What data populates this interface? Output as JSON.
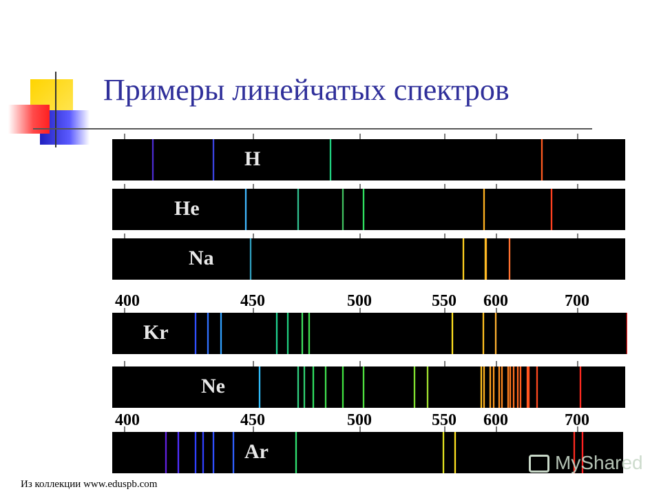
{
  "title": "Примеры линейчатых спектров",
  "footer": "Из коллекции www.eduspb.com",
  "watermark": "MyShared",
  "axis_labels": [
    "400",
    "450",
    "500",
    "550",
    "600",
    "700"
  ],
  "spectra": [
    {
      "element": "H",
      "lines": [
        {
          "nm": 410,
          "color": "#4b2bd0"
        },
        {
          "nm": 434,
          "color": "#3b44e0"
        },
        {
          "nm": 486,
          "color": "#20d080"
        },
        {
          "nm": 656,
          "color": "#ff5a20"
        }
      ]
    },
    {
      "element": "He",
      "lines": [
        {
          "nm": 447,
          "color": "#40b8ff"
        },
        {
          "nm": 471,
          "color": "#30c090"
        },
        {
          "nm": 492,
          "color": "#40c060"
        },
        {
          "nm": 502,
          "color": "#30e060"
        },
        {
          "nm": 588,
          "color": "#ffb020"
        },
        {
          "nm": 668,
          "color": "#ff4020"
        }
      ]
    },
    {
      "element": "Na",
      "lines": [
        {
          "nm": 449,
          "color": "#30a0c0"
        },
        {
          "nm": 568,
          "color": "#ffd020"
        },
        {
          "nm": 589,
          "color": "#ffd030"
        },
        {
          "nm": 590,
          "color": "#ffb020"
        },
        {
          "nm": 616,
          "color": "#ff7030"
        }
      ]
    },
    {
      "element": "Kr",
      "lines": [
        {
          "nm": 427,
          "color": "#3050ff"
        },
        {
          "nm": 432,
          "color": "#3070ff"
        },
        {
          "nm": 437,
          "color": "#30a0ff"
        },
        {
          "nm": 461,
          "color": "#20d090"
        },
        {
          "nm": 466,
          "color": "#20d080"
        },
        {
          "nm": 473,
          "color": "#40e060"
        },
        {
          "nm": 476,
          "color": "#40e050"
        },
        {
          "nm": 557,
          "color": "#ffe020"
        },
        {
          "nm": 587,
          "color": "#ffc020"
        },
        {
          "nm": 599,
          "color": "#ffb030"
        },
        {
          "nm": 760,
          "color": "#ff2020"
        }
      ]
    },
    {
      "element": "Ne",
      "lines": [
        {
          "nm": 453,
          "color": "#30c0ff"
        },
        {
          "nm": 471,
          "color": "#30d080"
        },
        {
          "nm": 474,
          "color": "#30d070"
        },
        {
          "nm": 478,
          "color": "#30e060"
        },
        {
          "nm": 484,
          "color": "#40e050"
        },
        {
          "nm": 492,
          "color": "#40e040"
        },
        {
          "nm": 502,
          "color": "#50e040"
        },
        {
          "nm": 532,
          "color": "#80e030"
        },
        {
          "nm": 540,
          "color": "#a0e030"
        },
        {
          "nm": 585,
          "color": "#ffc020"
        },
        {
          "nm": 588,
          "color": "#ffb020"
        },
        {
          "nm": 594,
          "color": "#ffa020"
        },
        {
          "nm": 597,
          "color": "#ff9a20"
        },
        {
          "nm": 603,
          "color": "#ff9020"
        },
        {
          "nm": 607,
          "color": "#ff8820"
        },
        {
          "nm": 614,
          "color": "#ff8020"
        },
        {
          "nm": 617,
          "color": "#ff7820"
        },
        {
          "nm": 621,
          "color": "#ff7020"
        },
        {
          "nm": 626,
          "color": "#ff6820"
        },
        {
          "nm": 630,
          "color": "#ff6020"
        },
        {
          "nm": 638,
          "color": "#ff5820"
        },
        {
          "nm": 640,
          "color": "#ff5020"
        },
        {
          "nm": 650,
          "color": "#ff4820"
        },
        {
          "nm": 703,
          "color": "#ff2a20"
        }
      ]
    },
    {
      "element": "Ar",
      "lines": [
        {
          "nm": 415,
          "color": "#6020e0"
        },
        {
          "nm": 420,
          "color": "#5030ff"
        },
        {
          "nm": 427,
          "color": "#3040ff"
        },
        {
          "nm": 430,
          "color": "#3040ff"
        },
        {
          "nm": 434,
          "color": "#3050ff"
        },
        {
          "nm": 442,
          "color": "#3060ff"
        },
        {
          "nm": 470,
          "color": "#30e070"
        },
        {
          "nm": 549,
          "color": "#e0e020"
        },
        {
          "nm": 560,
          "color": "#ffe020"
        },
        {
          "nm": 696,
          "color": "#ff2a20"
        },
        {
          "nm": 706,
          "color": "#ff2020"
        }
      ]
    }
  ],
  "chart_data": {
    "type": "spectral-lines",
    "title": "Примеры линейчатых спектров",
    "axis_tick_labels": [
      "400",
      "450",
      "500",
      "550",
      "600",
      "700"
    ],
    "unit": "",
    "elements": [
      "H",
      "He",
      "Na",
      "Kr",
      "Ne",
      "Ar"
    ]
  }
}
